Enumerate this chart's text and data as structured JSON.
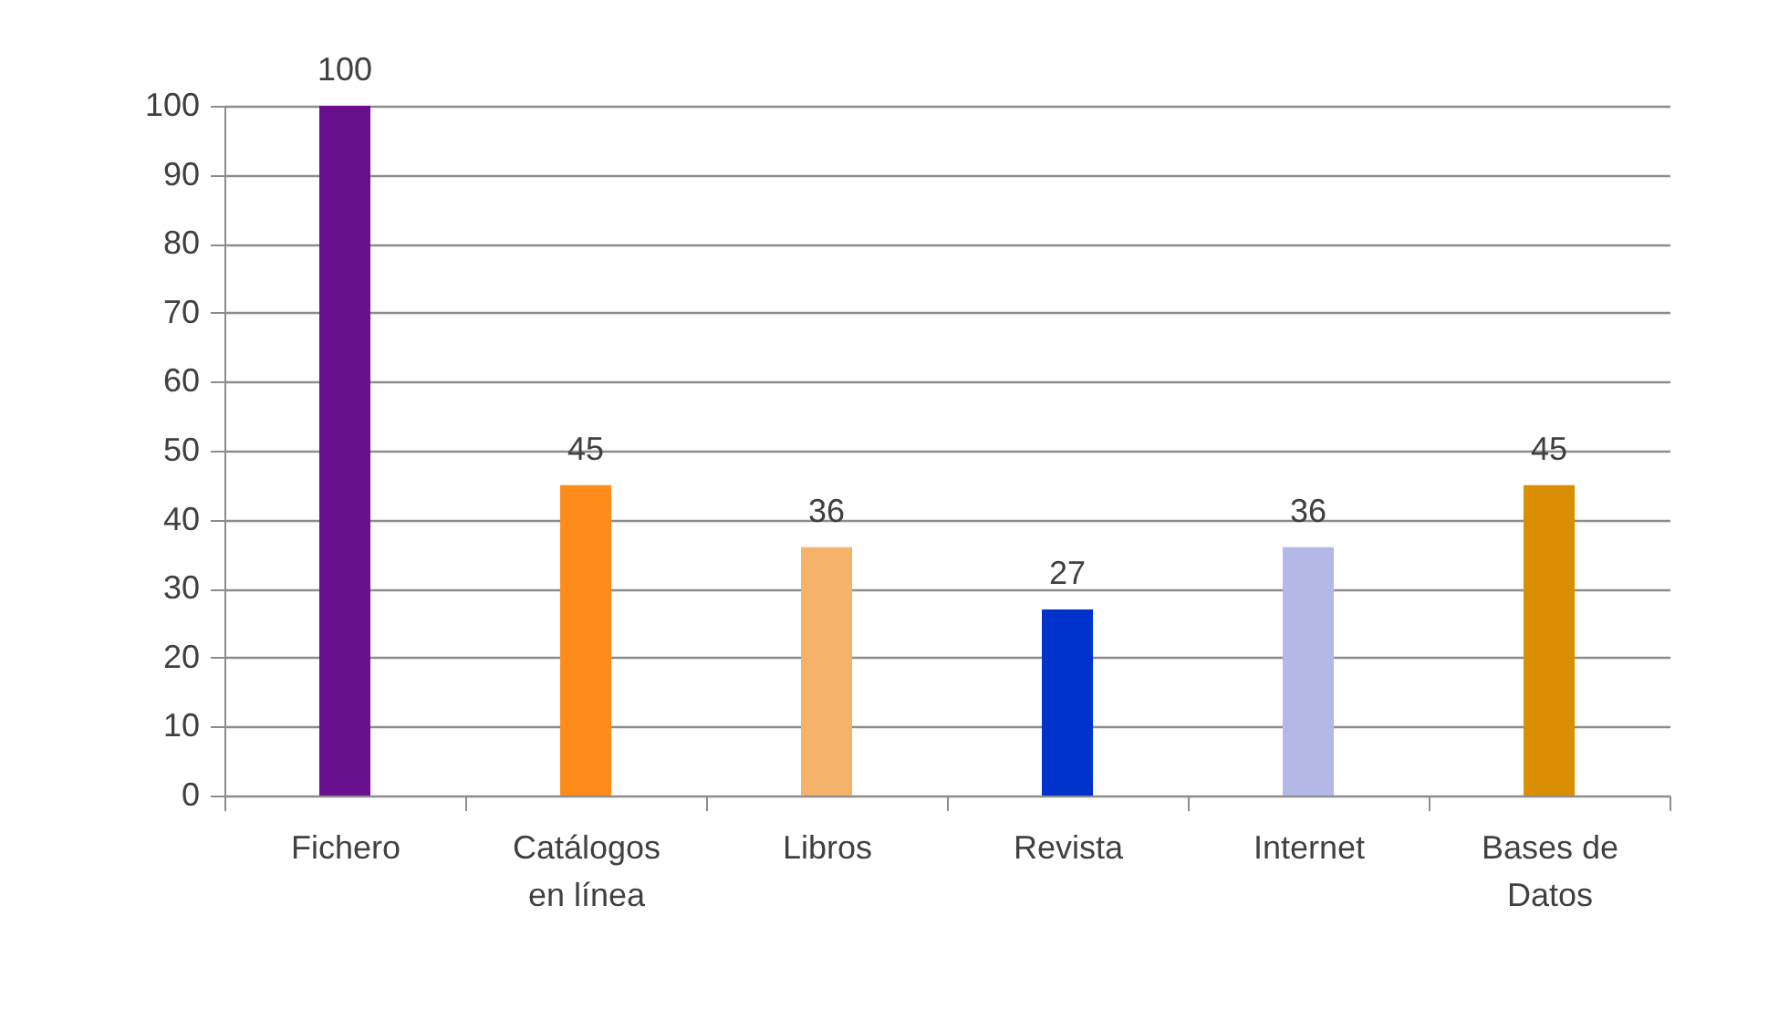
{
  "chart_data": {
    "type": "bar",
    "categories": [
      "Fichero",
      "Catálogos en línea",
      "Libros",
      "Revista",
      "Internet",
      "Bases de Datos"
    ],
    "values": [
      100,
      45,
      36,
      27,
      36,
      45
    ],
    "colors": [
      "#6a0f8e",
      "#ff8c1a",
      "#f5b26b",
      "#0033cc",
      "#b4b8e6",
      "#d98e04"
    ],
    "ylim": [
      0,
      100
    ],
    "yticks": [
      0,
      10,
      20,
      30,
      40,
      50,
      60,
      70,
      80,
      90,
      100
    ],
    "grid": "y",
    "data_labels": true
  }
}
